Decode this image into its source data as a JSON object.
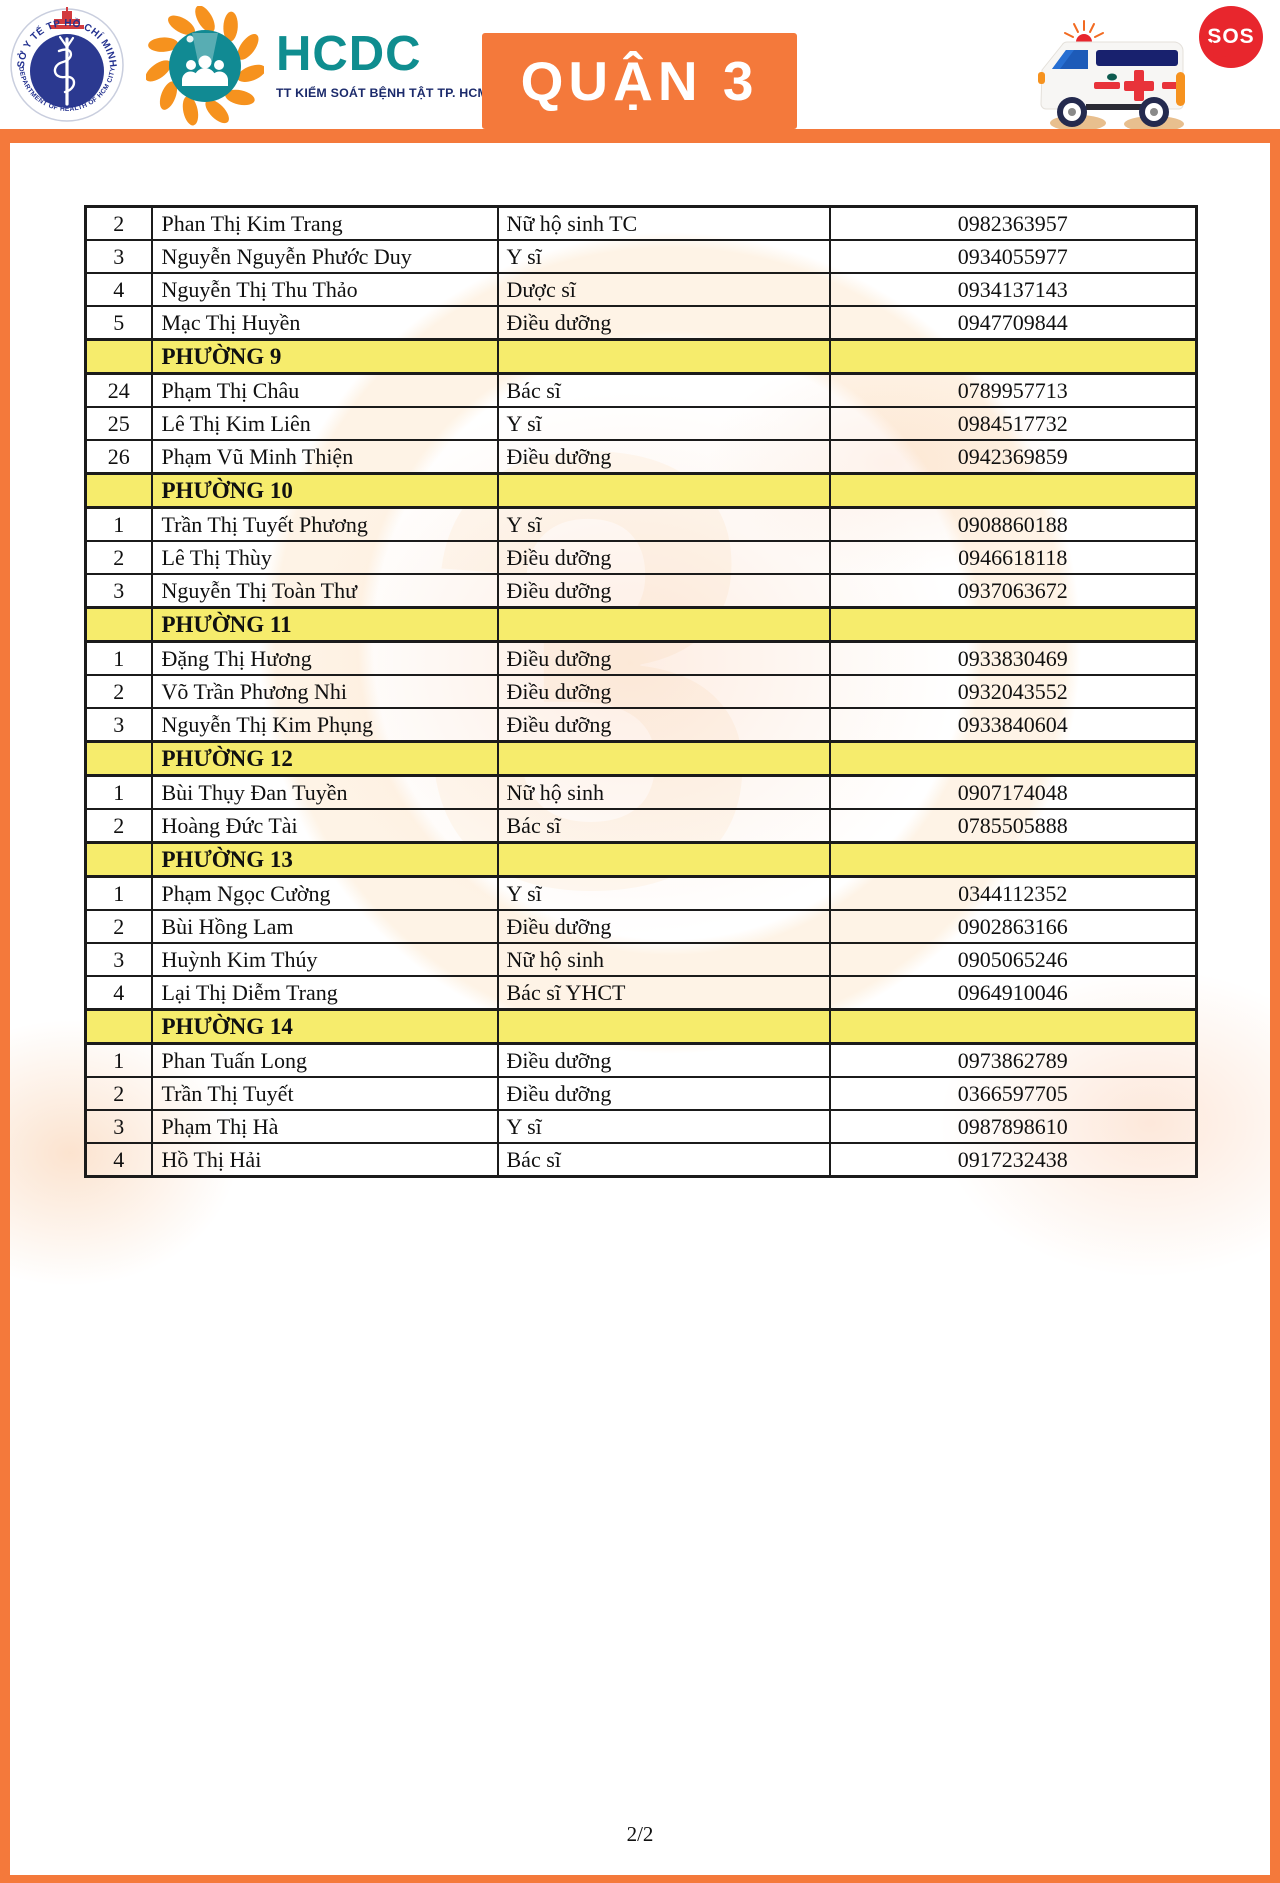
{
  "header": {
    "doh_logo": {
      "arc_top": "SỞ Y TẾ TP HỒ CHÍ MINH",
      "arc_bottom": "DEPARTMENT OF HEALTH OF HCM CITY"
    },
    "hcdc_logo": {
      "title": "HCDC",
      "subtitle": "TT KIỂM SOÁT BỆNH TẬT TP. HCM"
    },
    "district_banner": "QUẬN 3",
    "sos_label": "SOS"
  },
  "table": {
    "sections": [
      {
        "ward": "",
        "rows": [
          {
            "no": "2",
            "name": "Phan Thị Kim Trang",
            "role": "Nữ hộ sinh TC",
            "phone": "0982363957"
          },
          {
            "no": "3",
            "name": "Nguyễn Nguyễn Phước Duy",
            "role": "Y sĩ",
            "phone": "0934055977"
          },
          {
            "no": "4",
            "name": "Nguyễn Thị Thu Thảo",
            "role": "Dược sĩ",
            "phone": "0934137143"
          },
          {
            "no": "5",
            "name": "Mạc Thị Huyền",
            "role": "Điều dưỡng",
            "phone": "0947709844"
          }
        ]
      },
      {
        "ward": "PHƯỜNG 9",
        "rows": [
          {
            "no": "24",
            "name": "Phạm Thị Châu",
            "role": "Bác sĩ",
            "phone": "0789957713"
          },
          {
            "no": "25",
            "name": "Lê Thị Kim Liên",
            "role": "Y sĩ",
            "phone": "0984517732"
          },
          {
            "no": "26",
            "name": "Phạm Vũ Minh Thiện",
            "role": "Điều dưỡng",
            "phone": "0942369859"
          }
        ]
      },
      {
        "ward": "PHƯỜNG 10",
        "rows": [
          {
            "no": "1",
            "name": "Trần Thị Tuyết Phương",
            "role": "Y sĩ",
            "phone": "0908860188"
          },
          {
            "no": "2",
            "name": "Lê Thị Thùy",
            "role": "Điều dưỡng",
            "phone": "0946618118"
          },
          {
            "no": "3",
            "name": "Nguyễn Thị Toàn Thư",
            "role": "Điều dưỡng",
            "phone": "0937063672"
          }
        ]
      },
      {
        "ward": "PHƯỜNG 11",
        "rows": [
          {
            "no": "1",
            "name": "Đặng Thị Hương",
            "role": "Điều dưỡng",
            "phone": "0933830469"
          },
          {
            "no": "2",
            "name": "Võ Trần Phương Nhi",
            "role": "Điều dưỡng",
            "phone": "0932043552"
          },
          {
            "no": "3",
            "name": "Nguyễn Thị Kim Phụng",
            "role": "Điều dưỡng",
            "phone": "0933840604"
          }
        ]
      },
      {
        "ward": "PHƯỜNG 12",
        "rows": [
          {
            "no": "1",
            "name": "Bùi Thụy Đan Tuyền",
            "role": "Nữ hộ sinh",
            "phone": "0907174048"
          },
          {
            "no": "2",
            "name": "Hoàng Đức Tài",
            "role": "Bác sĩ",
            "phone": "0785505888"
          }
        ]
      },
      {
        "ward": "PHƯỜNG 13",
        "rows": [
          {
            "no": "1",
            "name": "Phạm Ngọc Cường",
            "role": "Y sĩ",
            "phone": "0344112352"
          },
          {
            "no": "2",
            "name": "Bùi Hồng Lam",
            "role": "Điều dưỡng",
            "phone": "0902863166"
          },
          {
            "no": "3",
            "name": "Huỳnh Kim Thúy",
            "role": "Nữ hộ sinh",
            "phone": "0905065246"
          },
          {
            "no": "4",
            "name": "Lại Thị Diễm Trang",
            "role": "Bác sĩ YHCT",
            "phone": "0964910046"
          }
        ]
      },
      {
        "ward": "PHƯỜNG 14",
        "rows": [
          {
            "no": "1",
            "name": "Phan Tuấn Long",
            "role": "Điều dưỡng",
            "phone": "0973862789"
          },
          {
            "no": "2",
            "name": "Trần Thị Tuyết",
            "role": "Điều dưỡng",
            "phone": "0366597705"
          },
          {
            "no": "3",
            "name": "Phạm Thị Hà",
            "role": "Y sĩ",
            "phone": "0987898610"
          },
          {
            "no": "4",
            "name": "Hồ Thị Hải",
            "role": "Bác sĩ",
            "phone": "0917232438"
          }
        ]
      }
    ]
  },
  "footer": {
    "page_number": "2/2"
  },
  "colors": {
    "accent_orange": "#f4793b",
    "wreath_orange": "#f6921e",
    "teal": "#0f8d8f",
    "navy": "#1b2a6b",
    "logo_navy": "#2b3990",
    "red": "#e8262d",
    "section_yellow": "#f6ec6c",
    "table_border": "#1b1b1b"
  }
}
